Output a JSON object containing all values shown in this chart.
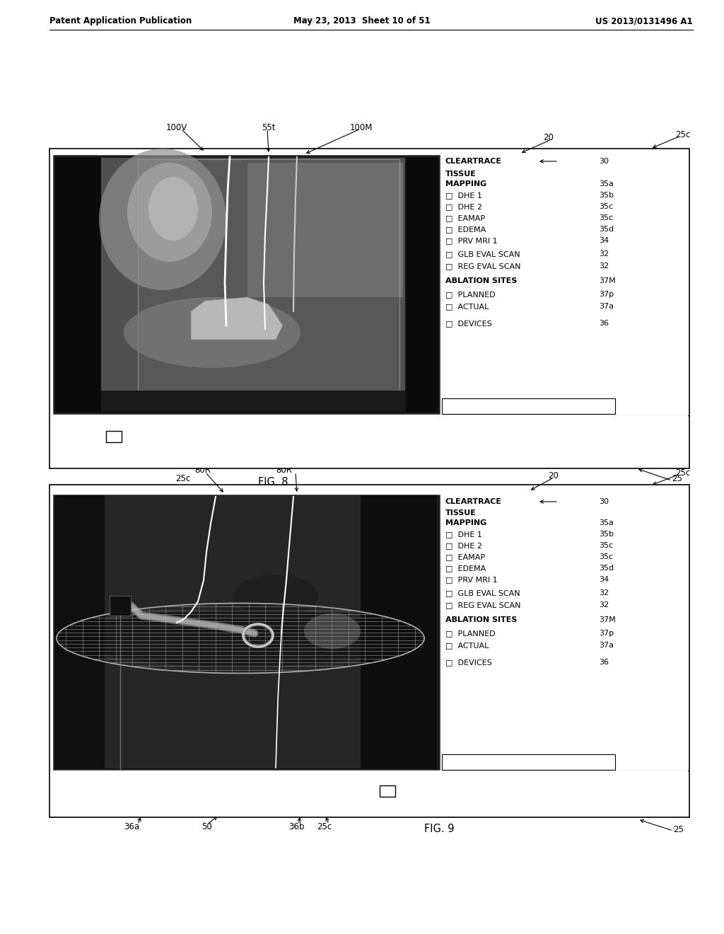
{
  "header_left": "Patent Application Publication",
  "header_mid": "May 23, 2013  Sheet 10 of 51",
  "header_right": "US 2013/0131496 A1",
  "bg_color": "#ffffff",
  "sidebar_items": [
    {
      "text": "CLEARTRACE",
      "bold": true,
      "label": "30",
      "has_arrow": true
    },
    {
      "text": "TISSUE",
      "bold": true,
      "label": null,
      "has_arrow": false
    },
    {
      "text": "MAPPING",
      "bold": true,
      "label": "35a",
      "has_arrow": true
    },
    {
      "text": "□  DHE 1",
      "bold": false,
      "label": "35b",
      "has_arrow": true
    },
    {
      "text": "□  DHE 2",
      "bold": false,
      "label": "35c",
      "has_arrow": true
    },
    {
      "text": "□  EAMAP",
      "bold": false,
      "label": "35c",
      "has_arrow": true
    },
    {
      "text": "□  EDEMA",
      "bold": false,
      "label": "35d",
      "has_arrow": true
    },
    {
      "text": "□  PRV MRI 1",
      "bold": false,
      "label": "34",
      "has_arrow": true
    },
    {
      "text": "□  GLB EVAL SCAN",
      "bold": false,
      "label": "32",
      "has_arrow": true
    },
    {
      "text": "□  REG EVAL SCAN",
      "bold": false,
      "label": "32",
      "has_arrow": true
    },
    {
      "text": "ABLATION SITES",
      "bold": true,
      "label": "37M",
      "has_arrow": true
    },
    {
      "text": "□  PLANNED",
      "bold": false,
      "label": "37p",
      "has_arrow": true
    },
    {
      "text": "□  ACTUAL",
      "bold": false,
      "label": "37a",
      "has_arrow": true
    },
    {
      "text": "□  DEVICES",
      "bold": false,
      "label": "36",
      "has_arrow": true
    }
  ]
}
